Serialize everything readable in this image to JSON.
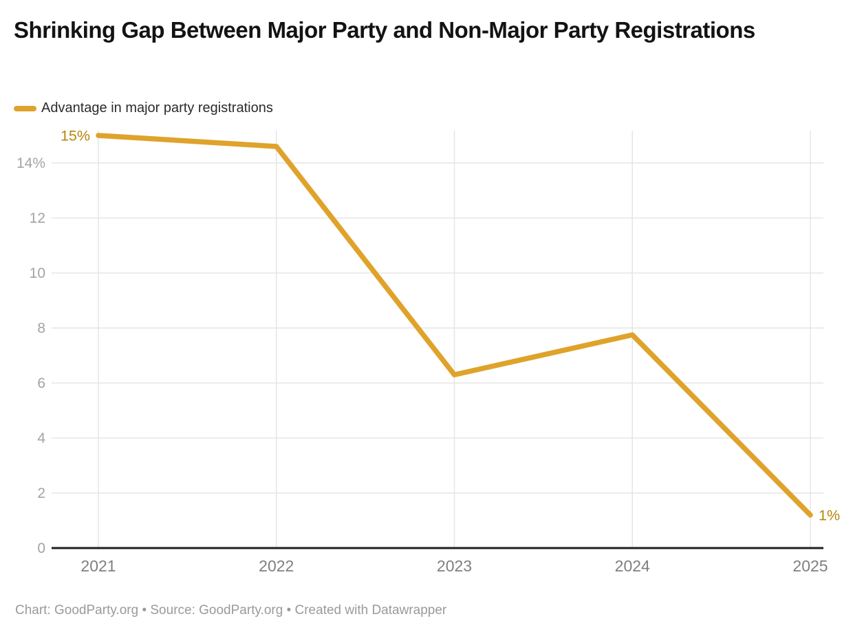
{
  "header": {
    "title": "Shrinking Gap Between Major Party and Non-Major Party Registrations"
  },
  "legend": {
    "label": "Advantage in major party registrations"
  },
  "chart_data": {
    "type": "line",
    "title": "Shrinking Gap Between Major Party and Non-Major Party Registrations",
    "x": [
      "2021",
      "2022",
      "2023",
      "2024",
      "2025"
    ],
    "series": [
      {
        "name": "Advantage in major party registrations",
        "values": [
          15,
          14.6,
          6.3,
          7.75,
          1.2
        ]
      }
    ],
    "xlabel": "",
    "ylabel": "",
    "ylim": [
      0,
      15
    ],
    "yticks": [
      {
        "value": 0,
        "label": "0"
      },
      {
        "value": 2,
        "label": "2"
      },
      {
        "value": 4,
        "label": "4"
      },
      {
        "value": 6,
        "label": "6"
      },
      {
        "value": 8,
        "label": "8"
      },
      {
        "value": 10,
        "label": "10"
      },
      {
        "value": 12,
        "label": "12"
      },
      {
        "value": 14,
        "label": "14%"
      }
    ],
    "grid": true,
    "legend_position": "top-left",
    "point_labels": [
      {
        "index": 0,
        "text": "15%",
        "side": "left"
      },
      {
        "index": 4,
        "text": "1%",
        "side": "right"
      }
    ],
    "colors": {
      "line": "#DFA32B",
      "point_label": "#B8860C",
      "grid": "#E5E5E5",
      "baseline": "#1F1F1F",
      "y_tick": "#A3A3A3",
      "x_tick": "#7F7F7F"
    }
  },
  "footer": {
    "text": "Chart: GoodParty.org • Source: GoodParty.org • Created with Datawrapper"
  }
}
